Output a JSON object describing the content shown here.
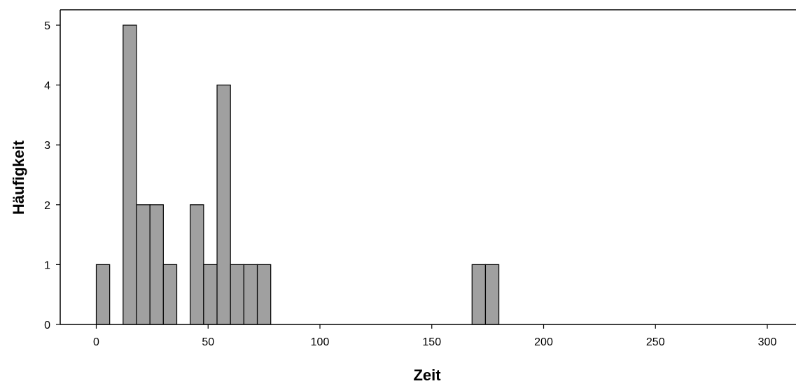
{
  "chart_data": {
    "type": "bar",
    "subtype": "histogram",
    "xlabel": "Zeit",
    "ylabel": "Häufigkeit",
    "xlim": [
      -15,
      315
    ],
    "ylim": [
      0,
      5.3
    ],
    "xticks": [
      0,
      50,
      100,
      150,
      200,
      250,
      300
    ],
    "yticks": [
      0,
      1,
      2,
      3,
      4,
      5
    ],
    "grid": false,
    "bin_width": 6,
    "bins": [
      {
        "start": 0,
        "end": 6,
        "count": 1
      },
      {
        "start": 12,
        "end": 18,
        "count": 5
      },
      {
        "start": 18,
        "end": 24,
        "count": 2
      },
      {
        "start": 24,
        "end": 30,
        "count": 2
      },
      {
        "start": 30,
        "end": 36,
        "count": 1
      },
      {
        "start": 42,
        "end": 48,
        "count": 2
      },
      {
        "start": 48,
        "end": 54,
        "count": 1
      },
      {
        "start": 54,
        "end": 60,
        "count": 4
      },
      {
        "start": 60,
        "end": 66,
        "count": 1
      },
      {
        "start": 66,
        "end": 72,
        "count": 1
      },
      {
        "start": 72,
        "end": 78,
        "count": 1
      },
      {
        "start": 168,
        "end": 174,
        "count": 1
      },
      {
        "start": 174,
        "end": 180,
        "count": 1
      }
    ],
    "colors": {
      "bar_fill": "#a0a0a0",
      "bar_stroke": "#000000",
      "axis": "#000000"
    }
  }
}
